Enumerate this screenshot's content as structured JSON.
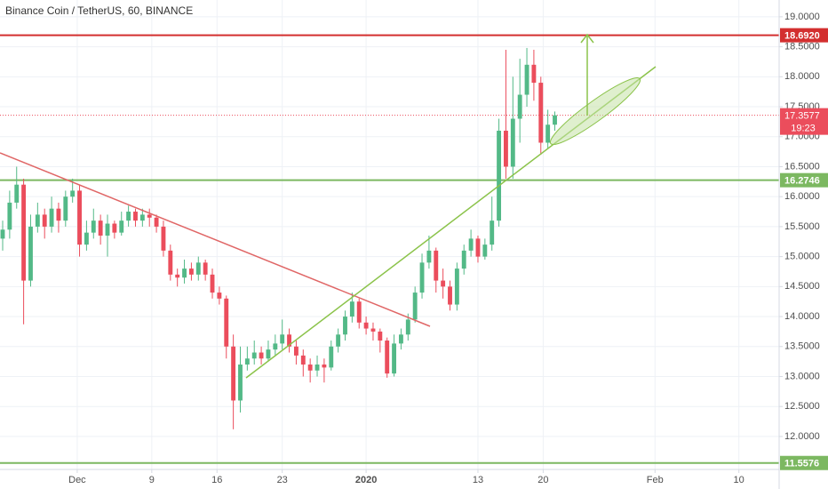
{
  "chart_data": {
    "type": "candlestick",
    "title": "Binance Coin / TetherUS, 60, BINANCE",
    "up_color": "#53b987",
    "down_color": "#eb4d5c",
    "grid": true,
    "x": [
      0,
      0.75,
      1.5,
      2.25,
      3,
      3.75,
      4.5,
      5.25,
      6,
      6.75,
      7.5,
      8.25,
      9,
      9.75,
      10.5,
      11.25,
      12,
      12.75,
      13.5,
      14.25,
      15,
      15.75,
      16.5,
      17.25,
      18,
      18.75,
      19.5,
      20.25,
      21,
      21.75,
      22.5,
      23.25,
      24,
      24.75,
      25.5,
      26.25,
      27,
      27.75,
      28.5,
      29.25,
      30,
      30.75,
      31.5,
      32.25,
      33,
      33.75,
      34.5,
      35.25,
      36,
      36.75,
      37.5,
      38.25,
      39,
      39.75,
      40.5,
      41.25,
      42,
      42.75,
      43.5,
      44.25,
      45,
      45.75,
      46.5,
      47.25,
      48,
      48.75,
      49.5,
      50.25,
      51,
      51.75,
      52.5,
      53.25,
      54,
      54.75,
      55.5,
      56.25,
      57,
      57.75,
      58.5,
      59.25
    ],
    "open": [
      15.3,
      15.45,
      15.9,
      16.2,
      14.6,
      15.5,
      15.7,
      15.5,
      15.8,
      15.6,
      16.0,
      16.1,
      15.2,
      15.4,
      15.6,
      15.35,
      15.55,
      15.4,
      15.6,
      15.75,
      15.6,
      15.7,
      15.65,
      15.5,
      15.1,
      14.7,
      14.65,
      14.8,
      14.7,
      14.9,
      14.7,
      14.4,
      14.3,
      13.5,
      12.6,
      13.2,
      13.3,
      13.4,
      13.3,
      13.45,
      13.55,
      13.7,
      13.5,
      13.35,
      13.2,
      13.1,
      13.2,
      13.15,
      13.5,
      13.7,
      14.0,
      14.25,
      13.9,
      13.8,
      13.75,
      13.6,
      13.05,
      13.55,
      13.7,
      13.95,
      14.4,
      14.9,
      15.1,
      14.6,
      14.5,
      14.2,
      14.8,
      15.1,
      15.3,
      15.0,
      15.2,
      15.6,
      17.1,
      16.5,
      17.3,
      17.7,
      18.2,
      17.9,
      16.9,
      17.2
    ],
    "high": [
      15.6,
      16.1,
      16.5,
      16.3,
      15.7,
      15.9,
      15.8,
      16.0,
      15.9,
      16.1,
      16.3,
      16.2,
      15.6,
      15.8,
      15.7,
      15.7,
      15.6,
      15.75,
      15.85,
      15.8,
      15.8,
      15.8,
      15.7,
      15.6,
      15.2,
      14.8,
      14.95,
      14.9,
      15.0,
      14.95,
      14.8,
      14.5,
      14.35,
      13.7,
      13.5,
      13.5,
      13.6,
      13.5,
      13.6,
      13.7,
      13.95,
      13.8,
      13.6,
      13.45,
      13.3,
      13.35,
      13.3,
      13.6,
      13.8,
      14.1,
      14.4,
      14.3,
      14.0,
      13.9,
      13.8,
      13.65,
      13.7,
      13.8,
      14.05,
      14.5,
      15.05,
      15.35,
      15.15,
      14.8,
      14.6,
      14.9,
      15.2,
      15.45,
      15.35,
      15.3,
      16.0,
      17.3,
      18.45,
      18.0,
      18.3,
      18.48,
      18.45,
      18.0,
      17.45,
      17.42
    ],
    "low": [
      15.1,
      15.3,
      15.8,
      13.87,
      14.5,
      15.4,
      15.3,
      15.4,
      15.4,
      15.5,
      15.9,
      15.0,
      15.1,
      15.3,
      15.2,
      15.0,
      15.3,
      15.35,
      15.5,
      15.5,
      15.5,
      15.5,
      15.4,
      15.0,
      14.6,
      14.5,
      14.55,
      14.6,
      14.6,
      14.6,
      14.3,
      14.2,
      13.3,
      12.12,
      12.4,
      13.1,
      13.2,
      13.2,
      13.25,
      13.35,
      13.45,
      13.4,
      13.2,
      13.0,
      12.9,
      13.0,
      12.9,
      13.1,
      13.4,
      13.6,
      13.9,
      13.8,
      13.7,
      13.6,
      13.4,
      12.98,
      13.0,
      13.45,
      13.6,
      13.9,
      14.3,
      14.8,
      14.4,
      14.3,
      14.1,
      14.1,
      14.7,
      15.0,
      14.9,
      14.95,
      15.1,
      15.5,
      16.3,
      16.3,
      16.9,
      17.5,
      17.6,
      16.7,
      16.8,
      17.1
    ],
    "close": [
      15.45,
      15.9,
      16.2,
      14.6,
      15.5,
      15.7,
      15.5,
      15.8,
      15.6,
      16.0,
      16.1,
      15.2,
      15.4,
      15.6,
      15.35,
      15.55,
      15.4,
      15.6,
      15.75,
      15.6,
      15.7,
      15.65,
      15.5,
      15.1,
      14.7,
      14.65,
      14.8,
      14.7,
      14.9,
      14.7,
      14.4,
      14.3,
      13.5,
      12.6,
      13.2,
      13.3,
      13.4,
      13.3,
      13.45,
      13.55,
      13.7,
      13.5,
      13.35,
      13.2,
      13.1,
      13.2,
      13.15,
      13.5,
      13.7,
      14.0,
      14.25,
      13.9,
      13.8,
      13.75,
      13.6,
      13.05,
      13.55,
      13.7,
      13.95,
      14.4,
      14.9,
      15.1,
      14.6,
      14.5,
      14.2,
      14.8,
      15.1,
      15.3,
      15.0,
      15.2,
      15.6,
      17.1,
      16.5,
      17.3,
      17.7,
      18.2,
      17.9,
      16.9,
      17.2,
      17.3577
    ],
    "xlim": [
      -0.286,
      83.32
    ],
    "xticks": [
      {
        "value": 8,
        "label": "Dec"
      },
      {
        "value": 16,
        "label": "9"
      },
      {
        "value": 23,
        "label": "16"
      },
      {
        "value": 30,
        "label": "23"
      },
      {
        "value": 39,
        "label": "2020"
      },
      {
        "value": 51,
        "label": "13"
      },
      {
        "value": 58,
        "label": "20"
      },
      {
        "value": 70,
        "label": "Feb"
      },
      {
        "value": 79,
        "label": "10"
      }
    ],
    "ylim": [
      11.45,
      19.28
    ],
    "yticks": [
      {
        "value": 12,
        "label": "12.0000"
      },
      {
        "value": 12.5,
        "label": "12.5000"
      },
      {
        "value": 13,
        "label": "13.0000"
      },
      {
        "value": 13.5,
        "label": "13.5000"
      },
      {
        "value": 14,
        "label": "14.0000"
      },
      {
        "value": 14.5,
        "label": "14.5000"
      },
      {
        "value": 15,
        "label": "15.0000"
      },
      {
        "value": 15.5,
        "label": "15.5000"
      },
      {
        "value": 16,
        "label": "16.0000"
      },
      {
        "value": 16.5,
        "label": "16.5000"
      },
      {
        "value": 17,
        "label": "17.0000"
      },
      {
        "value": 17.5,
        "label": "17.5000"
      },
      {
        "value": 18,
        "label": "18.0000"
      },
      {
        "value": 18.5,
        "label": "18.5000"
      },
      {
        "value": 19,
        "label": "19.0000"
      }
    ],
    "levels": [
      {
        "value": 18.692,
        "label": "18.6920",
        "color": "#d32f2f"
      },
      {
        "value": 16.2746,
        "label": "16.2746",
        "color": "#7cb861"
      },
      {
        "value": 11.5576,
        "label": "11.5576",
        "color": "#7cb861"
      }
    ],
    "last_price": {
      "value": 17.3577,
      "label": "17.3577",
      "countdown": "19:23",
      "color": "#eb4d5c"
    }
  }
}
